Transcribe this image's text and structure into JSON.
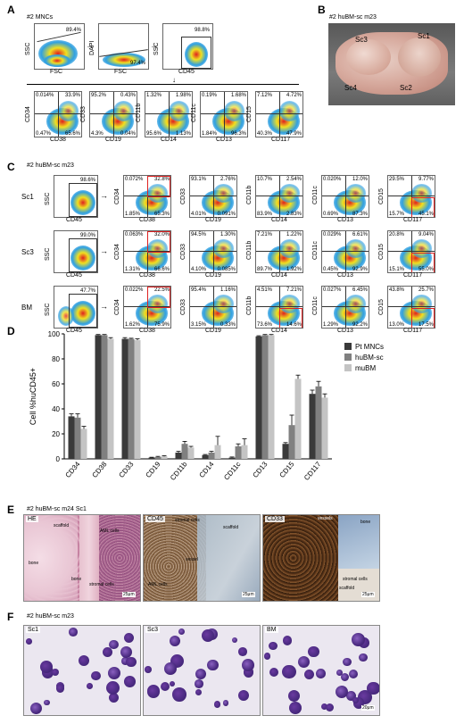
{
  "panels": {
    "A": {
      "letter": "A",
      "title": "#2 MNCs"
    },
    "B": {
      "letter": "B",
      "title": "#2 huBM-sc m23",
      "labels": [
        "Sc3",
        "Sc1",
        "Sc4",
        "Sc2"
      ]
    },
    "C": {
      "letter": "C",
      "title": "#2 huBM-sc m23"
    },
    "D": {
      "letter": "D"
    },
    "E": {
      "letter": "E",
      "title": "#2 huBM-sc m24 Sc1"
    },
    "F": {
      "letter": "F",
      "title": "#2 huBM-sc m23"
    }
  },
  "panelA": {
    "gate1": {
      "x": "FSC",
      "y": "SSC",
      "pct": "89.4%"
    },
    "gate2": {
      "x": "FSC",
      "y": "DAPI",
      "pct": "97.4%"
    },
    "gate3": {
      "x": "CD45",
      "y": "SSC",
      "pct": "98.8%"
    },
    "quads": [
      {
        "x": "CD38",
        "y": "CD34",
        "tl": "0.014%",
        "tr": "33.9%",
        "bl": "0.47%",
        "br": "65.6%"
      },
      {
        "x": "CD19",
        "y": "CD33",
        "tl": "95.2%",
        "tr": "0.43%",
        "bl": "4.3%",
        "br": "0.04%"
      },
      {
        "x": "CD14",
        "y": "CD11b",
        "tl": "1.32%",
        "tr": "1.98%",
        "bl": "95.6%",
        "br": "1.13%"
      },
      {
        "x": "CD13",
        "y": "CD11c",
        "tl": "0.19%",
        "tr": "1.68%",
        "bl": "1.84%",
        "br": "96.3%"
      },
      {
        "x": "CD117",
        "y": "CD15",
        "tl": "7.12%",
        "tr": "4.72%",
        "bl": "40.3%",
        "br": "47.9%"
      }
    ]
  },
  "panelC": {
    "rows": [
      {
        "label": "Sc1",
        "gate_pct": "98.6%",
        "quads": [
          {
            "x": "CD38",
            "y": "CD34",
            "tl": "0.072%",
            "tr": "32.8%",
            "bl": "1.85%",
            "br": "65.3%"
          },
          {
            "x": "CD19",
            "y": "CD33",
            "tl": "93.1%",
            "tr": "2.76%",
            "bl": "4.01%",
            "br": "0.091%"
          },
          {
            "x": "CD14",
            "y": "CD11b",
            "tl": "10.7%",
            "tr": "2.54%",
            "bl": "83.9%",
            "br": "2.83%"
          },
          {
            "x": "CD13",
            "y": "CD11c",
            "tl": "0.020%",
            "tr": "12.0%",
            "bl": "0.69%",
            "br": "87.3%"
          },
          {
            "x": "CD117",
            "y": "CD15",
            "tl": "29.5%",
            "tr": "9.77%",
            "bl": "15.7%",
            "br": "45.1%"
          }
        ]
      },
      {
        "label": "Sc3",
        "gate_pct": "99.0%",
        "quads": [
          {
            "x": "CD38",
            "y": "CD34",
            "tl": "0.063%",
            "tr": "32.0%",
            "bl": "1.31%",
            "br": "66.6%"
          },
          {
            "x": "CD19",
            "y": "CD33",
            "tl": "94.5%",
            "tr": "1.30%",
            "bl": "4.10%",
            "br": "0.085%"
          },
          {
            "x": "CD14",
            "y": "CD11b",
            "tl": "7.21%",
            "tr": "1.22%",
            "bl": "89.7%",
            "br": "1.92%"
          },
          {
            "x": "CD13",
            "y": "CD11c",
            "tl": "0.029%",
            "tr": "6.61%",
            "bl": "0.45%",
            "br": "92.9%"
          },
          {
            "x": "CD117",
            "y": "CD15",
            "tl": "20.8%",
            "tr": "9.04%",
            "bl": "15.1%",
            "br": "55.0%"
          }
        ]
      },
      {
        "label": "BM",
        "gate_pct": "47.7%",
        "quads": [
          {
            "x": "CD38",
            "y": "CD34",
            "tl": "0.022%",
            "tr": "22.5%",
            "bl": "1.62%",
            "br": "75.9%"
          },
          {
            "x": "CD19",
            "y": "CD33",
            "tl": "95.4%",
            "tr": "1.16%",
            "bl": "3.15%",
            "br": "0.33%"
          },
          {
            "x": "CD14",
            "y": "CD11b",
            "tl": "4.51%",
            "tr": "7.21%",
            "bl": "73.6%",
            "br": "14.6%"
          },
          {
            "x": "CD13",
            "y": "CD11c",
            "tl": "0.027%",
            "tr": "6.45%",
            "bl": "1.29%",
            "br": "92.2%"
          },
          {
            "x": "CD117",
            "y": "CD15",
            "tl": "43.8%",
            "tr": "25.7%",
            "bl": "13.0%",
            "br": "17.5%"
          }
        ]
      }
    ],
    "gate_axes": {
      "x": "CD45",
      "y": "SSC"
    }
  },
  "chart_data": {
    "type": "bar",
    "categories": [
      "CD34",
      "CD38",
      "CD33",
      "CD19",
      "CD11b",
      "CD14",
      "CD11c",
      "CD13",
      "CD15",
      "CD117"
    ],
    "series": [
      {
        "name": "Pt MNCs",
        "color": "#3a3a3a",
        "values": [
          34,
          99,
          96,
          1,
          5,
          3,
          1,
          98,
          12,
          52
        ],
        "err": [
          2,
          0.5,
          1,
          0.3,
          1,
          0.5,
          0.5,
          0.5,
          1,
          3
        ]
      },
      {
        "name": "huBM-sc",
        "color": "#808080",
        "values": [
          33,
          99,
          96,
          1.5,
          12,
          5,
          10,
          99,
          27,
          58
        ],
        "err": [
          3,
          0.5,
          0.5,
          0.5,
          2,
          1,
          2,
          0.5,
          8,
          4
        ]
      },
      {
        "name": "muBM",
        "color": "#c4c4c4",
        "values": [
          24,
          96,
          95,
          2,
          9,
          11,
          11,
          99,
          64,
          49
        ],
        "err": [
          2,
          1,
          1,
          0.5,
          1,
          7,
          5,
          0.5,
          3,
          3
        ]
      }
    ],
    "ylabel": "Cell %huCD45+",
    "ylim": [
      0,
      100
    ],
    "yticks": [
      0,
      20,
      40,
      60,
      80,
      100
    ],
    "legend_position": "top-right"
  },
  "panelE": {
    "images": [
      {
        "label": "HE",
        "scale": "25μm",
        "annotations": [
          "scaffold",
          "AML cells",
          "bone",
          "bone",
          "stromal cells"
        ]
      },
      {
        "label": "CD45",
        "scale": "25μm",
        "annotations": [
          "stromal cells",
          "scaffold",
          "vessel",
          "AML cells"
        ]
      },
      {
        "label": "CD33",
        "scale": "25μm",
        "annotations": [
          "vessels",
          "bone",
          "stromal cells",
          "scaffold"
        ]
      }
    ]
  },
  "panelF": {
    "images": [
      {
        "label": "Sc1"
      },
      {
        "label": "Sc3"
      },
      {
        "label": "BM",
        "scale": "20μm"
      }
    ]
  },
  "colors": {
    "flow_hot": "#e02020",
    "flow_mid": "#f0e020",
    "flow_low": "#30a0e0",
    "flow_cold": "#2050c0",
    "gate_box": "#d22"
  }
}
